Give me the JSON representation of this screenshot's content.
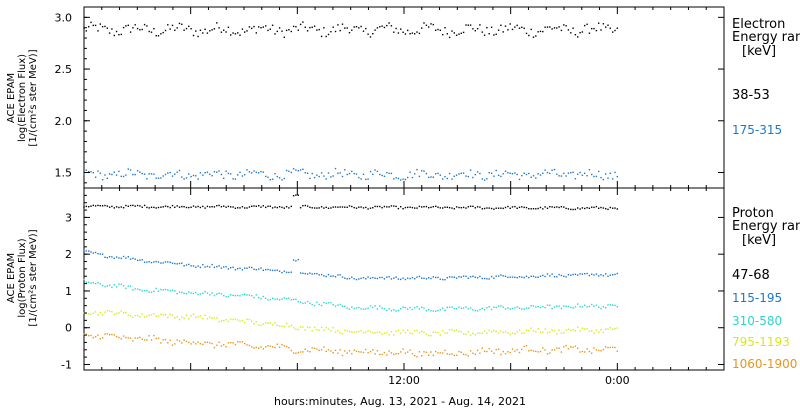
{
  "colors": {
    "black": "#000000",
    "blue": "#1f77c8",
    "cyan": "#2ad6d0",
    "yellow": "#d8e81a",
    "orange": "#e8941a"
  },
  "chart_data": [
    {
      "type": "scatter",
      "panel": "electron",
      "ylabel_lines": [
        "ACE EPAM",
        "log(Electron Flux)",
        "[1/(cm²s ster MeV)]"
      ],
      "ylim": [
        1.35,
        3.1
      ],
      "yticks": [
        1.5,
        2.0,
        2.5,
        3.0
      ],
      "ytick_labels": [
        "1.5",
        "2.0",
        "2.5",
        "3.0"
      ],
      "legend_title_lines": [
        "Electron",
        "Energy ran",
        "[keV]"
      ],
      "series": [
        {
          "name": "38-53",
          "color": "#000000",
          "base": [
            [
              0,
              2.88
            ],
            [
              30,
              2.88
            ]
          ],
          "jitter": 0.05
        },
        {
          "name": "175-315",
          "color": "#1f77c8",
          "base": [
            [
              0,
              1.48
            ],
            [
              30,
              1.48
            ]
          ],
          "jitter": 0.04
        }
      ]
    },
    {
      "type": "scatter",
      "panel": "proton",
      "ylabel_lines": [
        "ACE EPAM",
        "log(Proton Flux)",
        "[1/(cm²s ster MeV)]"
      ],
      "ylim": [
        -1.15,
        3.8
      ],
      "yticks": [
        -1,
        0,
        1,
        2,
        3
      ],
      "ytick_labels": [
        "-1",
        "0",
        "1",
        "2",
        "3"
      ],
      "legend_title_lines": [
        "Proton",
        "Energy ran",
        "[keV]"
      ],
      "series": [
        {
          "name": "47-68",
          "color": "#000000",
          "base": [
            [
              0,
              3.3
            ],
            [
              30,
              3.25
            ]
          ],
          "jitter": 0.03
        },
        {
          "name": "115-195",
          "color": "#1f77c8",
          "base": [
            [
              0,
              2.05
            ],
            [
              3,
              1.85
            ],
            [
              6,
              1.7
            ],
            [
              9.5,
              1.6
            ],
            [
              11,
              1.55
            ],
            [
              12.5,
              1.5
            ],
            [
              15,
              1.35
            ],
            [
              20,
              1.35
            ],
            [
              25,
              1.4
            ],
            [
              30,
              1.45
            ]
          ],
          "jitter": 0.04
        },
        {
          "name": "310-580",
          "color": "#2ad6d0",
          "base": [
            [
              0,
              1.25
            ],
            [
              3,
              1.05
            ],
            [
              6,
              0.95
            ],
            [
              9.5,
              0.85
            ],
            [
              12.5,
              0.7
            ],
            [
              15,
              0.55
            ],
            [
              20,
              0.5
            ],
            [
              25,
              0.55
            ],
            [
              30,
              0.6
            ]
          ],
          "jitter": 0.05
        },
        {
          "name": "795-1193",
          "color": "#d8e81a",
          "base": [
            [
              0,
              0.45
            ],
            [
              3,
              0.35
            ],
            [
              6,
              0.3
            ],
            [
              9.5,
              0.15
            ],
            [
              12.5,
              0.0
            ],
            [
              15,
              -0.1
            ],
            [
              20,
              -0.15
            ],
            [
              25,
              -0.1
            ],
            [
              30,
              -0.05
            ]
          ],
          "jitter": 0.06
        },
        {
          "name": "1060-1900",
          "color": "#e8941a",
          "base": [
            [
              0,
              -0.2
            ],
            [
              3,
              -0.3
            ],
            [
              6,
              -0.4
            ],
            [
              9.5,
              -0.5
            ],
            [
              12.5,
              -0.6
            ],
            [
              15,
              -0.65
            ],
            [
              20,
              -0.7
            ],
            [
              25,
              -0.6
            ],
            [
              30,
              -0.6
            ]
          ],
          "jitter": 0.08
        }
      ]
    }
  ],
  "x_axis": {
    "range_hours": [
      0,
      36
    ],
    "ticks": [
      6,
      18,
      30
    ],
    "tick_labels": [
      "",
      "12:00",
      "0:00"
    ],
    "title": "hours:minutes, Aug. 13, 2021 - Aug. 14, 2021"
  }
}
